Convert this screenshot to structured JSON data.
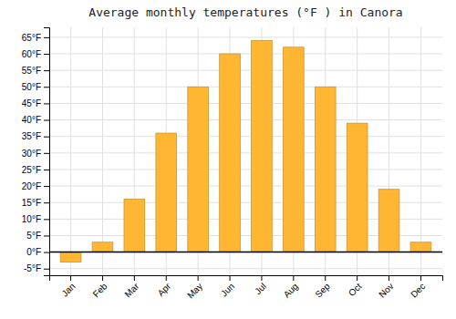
{
  "chart_data": {
    "type": "bar",
    "title": "Average monthly temperatures (°F ) in Canora",
    "categories": [
      "Jan",
      "Feb",
      "Mar",
      "Apr",
      "May",
      "Jun",
      "Jul",
      "Aug",
      "Sep",
      "Oct",
      "Nov",
      "Dec"
    ],
    "values": [
      -3,
      3,
      16,
      36,
      50,
      60,
      64,
      62,
      50,
      39,
      19,
      3
    ],
    "color": "#FFB733",
    "ylim": [
      -7,
      68
    ],
    "yticks": [
      {
        "value": -5,
        "label": "-5°F"
      },
      {
        "value": 0,
        "label": "0°F"
      },
      {
        "value": 5,
        "label": "5°F"
      },
      {
        "value": 10,
        "label": "10°F"
      },
      {
        "value": 15,
        "label": "15°F"
      },
      {
        "value": 20,
        "label": "20°F"
      },
      {
        "value": 25,
        "label": "25°F"
      },
      {
        "value": 30,
        "label": "30°F"
      },
      {
        "value": 35,
        "label": "35°F"
      },
      {
        "value": 40,
        "label": "40°F"
      },
      {
        "value": 45,
        "label": "45°F"
      },
      {
        "value": 50,
        "label": "50°F"
      },
      {
        "value": 55,
        "label": "55°F"
      },
      {
        "value": 60,
        "label": "60°F"
      },
      {
        "value": 65,
        "label": "65°F"
      }
    ],
    "grid": true
  }
}
